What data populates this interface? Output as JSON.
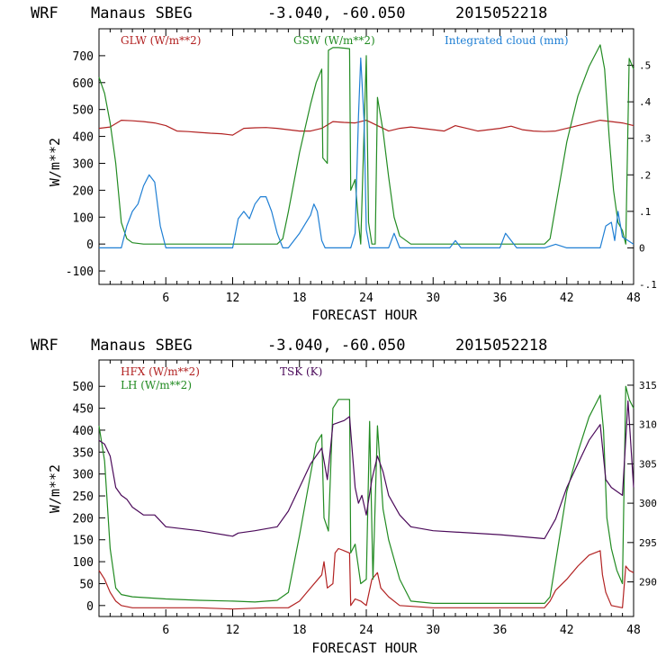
{
  "chart_data": [
    {
      "type": "line",
      "title_left": "WRF",
      "title_station": "Manaus SBEG",
      "title_coords": "-3.040, -60.050",
      "title_time": "2015052218",
      "xlabel": "FORECAST HOUR",
      "ylabel": "W/m**2",
      "xlim": [
        0,
        48
      ],
      "ylim": [
        -150,
        800
      ],
      "y2lim": [
        -0.1,
        0.6
      ],
      "x_ticks": [
        6,
        12,
        18,
        24,
        30,
        36,
        42,
        48
      ],
      "y_ticks": [
        -100,
        0,
        100,
        200,
        300,
        400,
        500,
        600,
        700
      ],
      "y_tick_labels": [
        "-100",
        "0",
        "100",
        "200",
        "300",
        "400",
        "500",
        "600",
        "700"
      ],
      "y2_ticks": [
        -0.1,
        0,
        0.1,
        0.2,
        0.3,
        0.4,
        0.5
      ],
      "y2_tick_labels": [
        "-.1",
        "0",
        ".1",
        ".2",
        ".3",
        ".4",
        ".5"
      ],
      "series": [
        {
          "name": "GLW (W/m**2)",
          "color": "#b22222",
          "axis": "left",
          "x": [
            0,
            1,
            2,
            3,
            4,
            5,
            6,
            7,
            8,
            9,
            10,
            11,
            12,
            13,
            14,
            15,
            16,
            17,
            18,
            19,
            20,
            21,
            22,
            23,
            24,
            25,
            26,
            27,
            28,
            29,
            30,
            31,
            32,
            33,
            34,
            35,
            36,
            37,
            38,
            39,
            40,
            41,
            42,
            43,
            44,
            45,
            46,
            47,
            48
          ],
          "values": [
            430,
            435,
            460,
            458,
            455,
            450,
            440,
            420,
            418,
            415,
            412,
            410,
            405,
            430,
            432,
            433,
            430,
            425,
            420,
            420,
            430,
            455,
            452,
            450,
            460,
            440,
            420,
            430,
            435,
            430,
            425,
            420,
            440,
            430,
            420,
            425,
            430,
            438,
            425,
            420,
            418,
            420,
            430,
            440,
            450,
            460,
            455,
            450,
            440
          ]
        },
        {
          "name": "GSW (W/m**2)",
          "color": "#228b22",
          "axis": "left",
          "x": [
            0,
            0.5,
            1,
            1.5,
            2,
            2.5,
            3,
            4,
            6,
            8,
            10,
            12,
            14,
            16,
            16.5,
            17,
            18,
            19,
            19.5,
            20,
            20.1,
            20.5,
            20.6,
            21,
            21.5,
            22,
            22.5,
            22.6,
            23,
            23.3,
            23.5,
            24,
            24.2,
            24.5,
            24.8,
            25,
            25.5,
            26,
            26.5,
            27,
            28,
            30,
            34,
            38,
            40,
            40.5,
            41,
            42,
            43,
            44,
            45,
            45.4,
            45.8,
            46.2,
            46.6,
            47,
            47.3,
            47.6,
            48
          ],
          "values": [
            620,
            560,
            450,
            300,
            80,
            20,
            5,
            0,
            0,
            0,
            0,
            0,
            0,
            0,
            20,
            120,
            340,
            520,
            600,
            650,
            320,
            300,
            720,
            730,
            730,
            728,
            726,
            200,
            240,
            80,
            0,
            700,
            80,
            0,
            0,
            545,
            420,
            250,
            100,
            30,
            0,
            0,
            0,
            0,
            0,
            20,
            140,
            380,
            550,
            660,
            740,
            650,
            400,
            200,
            80,
            50,
            0,
            690,
            650
          ]
        },
        {
          "name": "Integrated cloud (mm)",
          "color": "#1f7fd4",
          "axis": "right",
          "x": [
            0,
            2,
            2.5,
            3,
            3.5,
            4,
            4.5,
            5,
            5.5,
            6,
            10,
            12,
            12.5,
            13,
            13.5,
            14,
            14.5,
            15,
            15.5,
            16,
            16.5,
            17,
            18,
            19,
            19.3,
            19.6,
            20,
            20.3,
            20.6,
            21,
            22,
            22.6,
            23,
            23.3,
            23.5,
            23.8,
            24,
            24.3,
            24.6,
            25,
            26,
            26.5,
            27,
            28,
            31.5,
            32,
            32.5,
            36,
            36.5,
            37,
            37.5,
            40,
            41,
            42,
            45,
            45.5,
            46,
            46.3,
            46.6,
            47,
            48
          ],
          "values": [
            0,
            0,
            0.06,
            0.1,
            0.12,
            0.17,
            0.2,
            0.18,
            0.06,
            0,
            0,
            0,
            0.08,
            0.1,
            0.08,
            0.12,
            0.14,
            0.14,
            0.1,
            0.04,
            0,
            0,
            0.04,
            0.09,
            0.12,
            0.1,
            0.02,
            0,
            0,
            0,
            0,
            0,
            0.04,
            0.36,
            0.52,
            0.35,
            0.05,
            0,
            0,
            0,
            0,
            0.04,
            0,
            0,
            0,
            0.02,
            0,
            0,
            0.04,
            0.02,
            0,
            0,
            0.01,
            0,
            0,
            0.06,
            0.07,
            0.02,
            0.1,
            0.03,
            0.01
          ]
        }
      ]
    },
    {
      "type": "line",
      "title_left": "WRF",
      "title_station": "Manaus SBEG",
      "title_coords": "-3.040, -60.050",
      "title_time": "2015052218",
      "xlabel": "FORECAST HOUR",
      "ylabel": "W/m**2",
      "xlim": [
        0,
        48
      ],
      "ylim": [
        -25,
        560
      ],
      "y2lim": [
        285.6,
        318.2
      ],
      "x_ticks": [
        6,
        12,
        18,
        24,
        30,
        36,
        42,
        48
      ],
      "y_ticks": [
        0,
        50,
        100,
        150,
        200,
        250,
        300,
        350,
        400,
        450,
        500
      ],
      "y_tick_labels": [
        "0",
        "50",
        "100",
        "150",
        "200",
        "250",
        "300",
        "350",
        "400",
        "450",
        "500"
      ],
      "y2_ticks": [
        290,
        295,
        300,
        305,
        310,
        315
      ],
      "y2_tick_labels": [
        "290",
        "295",
        "300",
        "305",
        "310",
        "315"
      ],
      "series": [
        {
          "name": "HFX (W/m**2)",
          "color": "#b22222",
          "axis": "left",
          "x": [
            0,
            0.5,
            1,
            1.5,
            2,
            3,
            6,
            9,
            12,
            15,
            17,
            18,
            19,
            20,
            20.2,
            20.5,
            21,
            21.2,
            21.5,
            22,
            22.5,
            22.6,
            23,
            23.5,
            24,
            24.5,
            25,
            25.3,
            26,
            27,
            30,
            36,
            40,
            40.5,
            41,
            42,
            43,
            44,
            45,
            45.2,
            45.5,
            46,
            47,
            47.3,
            47.6,
            48
          ],
          "values": [
            80,
            60,
            30,
            10,
            0,
            -5,
            -5,
            -5,
            -8,
            -5,
            -5,
            10,
            40,
            70,
            100,
            40,
            50,
            120,
            130,
            125,
            120,
            0,
            15,
            10,
            0,
            60,
            75,
            40,
            20,
            0,
            -5,
            -5,
            -5,
            10,
            35,
            60,
            90,
            115,
            125,
            70,
            30,
            0,
            -5,
            90,
            80,
            75
          ]
        },
        {
          "name": "LH (W/m**2)",
          "color": "#228b22",
          "axis": "left",
          "x": [
            0,
            0.5,
            1,
            1.5,
            2,
            3,
            6,
            9,
            12,
            14,
            16,
            17,
            18,
            19,
            19.5,
            20,
            20.2,
            20.6,
            21,
            21.5,
            22,
            22.5,
            22.6,
            23,
            23.5,
            24,
            24.3,
            24.6,
            25,
            25.5,
            26,
            27,
            28,
            30,
            36,
            40,
            40.5,
            41,
            42,
            43,
            44,
            45,
            45.3,
            45.6,
            46,
            46.5,
            47,
            47.3,
            47.6,
            48
          ],
          "values": [
            410,
            330,
            130,
            40,
            25,
            20,
            15,
            12,
            10,
            8,
            12,
            30,
            160,
            300,
            370,
            390,
            200,
            170,
            450,
            470,
            470,
            470,
            120,
            140,
            50,
            60,
            420,
            60,
            410,
            220,
            150,
            60,
            10,
            5,
            5,
            5,
            20,
            100,
            260,
            350,
            430,
            480,
            400,
            200,
            130,
            80,
            50,
            500,
            470,
            450
          ]
        },
        {
          "name": "TSK (K)",
          "color": "#4b0a5a",
          "axis": "right",
          "x": [
            0,
            0.5,
            1,
            1.5,
            2,
            2.5,
            3,
            4,
            5,
            6,
            9,
            12,
            12.5,
            14,
            16,
            17,
            18,
            19,
            20,
            20.5,
            21,
            22,
            22.5,
            23,
            23.3,
            23.6,
            24,
            24.5,
            25,
            25.5,
            26,
            27,
            28,
            30,
            36,
            40,
            41,
            42,
            43,
            44,
            45,
            45.5,
            46,
            47,
            47.5,
            48
          ],
          "values": [
            308,
            307.5,
            306,
            302,
            301,
            300.5,
            299.5,
            298.5,
            298.5,
            297,
            296.5,
            295.8,
            296.2,
            296.5,
            297,
            299,
            302,
            305,
            307,
            303,
            310,
            310.5,
            311,
            302,
            300,
            301,
            298.5,
            303,
            306,
            304,
            301,
            298.5,
            297,
            296.5,
            296,
            295.5,
            298,
            302,
            305,
            308,
            310,
            303,
            302,
            301,
            313,
            302
          ]
        }
      ]
    }
  ]
}
